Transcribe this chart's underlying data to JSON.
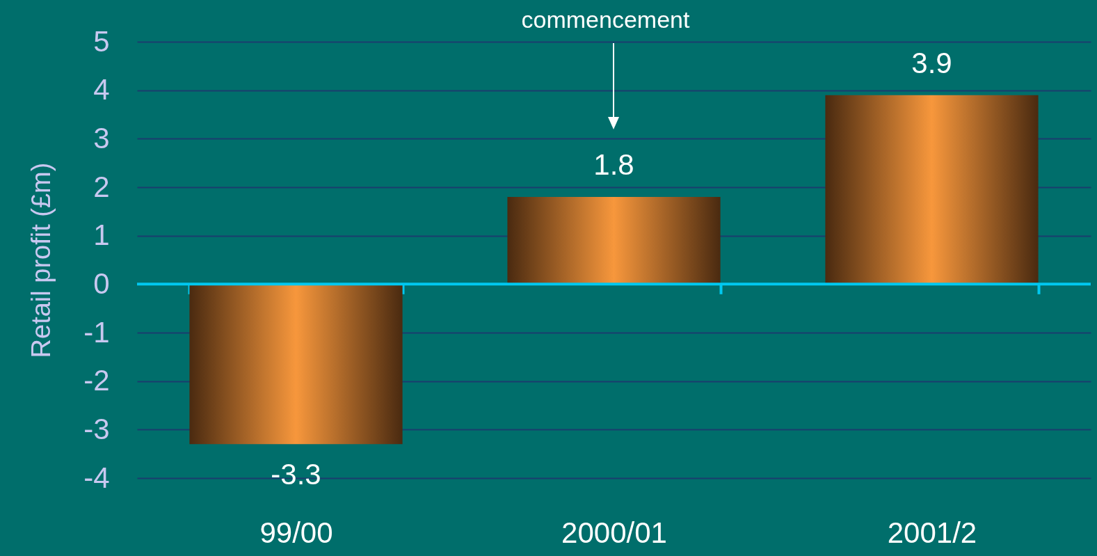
{
  "chart_data": {
    "type": "bar",
    "ylabel": "Retail profit (£m)",
    "categories": [
      "99/00",
      "2000/01",
      "2001/2"
    ],
    "values": [
      -3.3,
      1.8,
      3.9
    ],
    "color": "#f7973c",
    "ylim": [
      -4,
      5
    ],
    "yticks": [
      -4,
      -3,
      -2,
      -1,
      0,
      1,
      2,
      3,
      4,
      5
    ],
    "grid": "y",
    "data_labels": true,
    "ref_lines": [
      {
        "axis": "y",
        "value": 0,
        "color": "#00c8f0"
      }
    ],
    "annotations": [
      "commencement"
    ]
  }
}
